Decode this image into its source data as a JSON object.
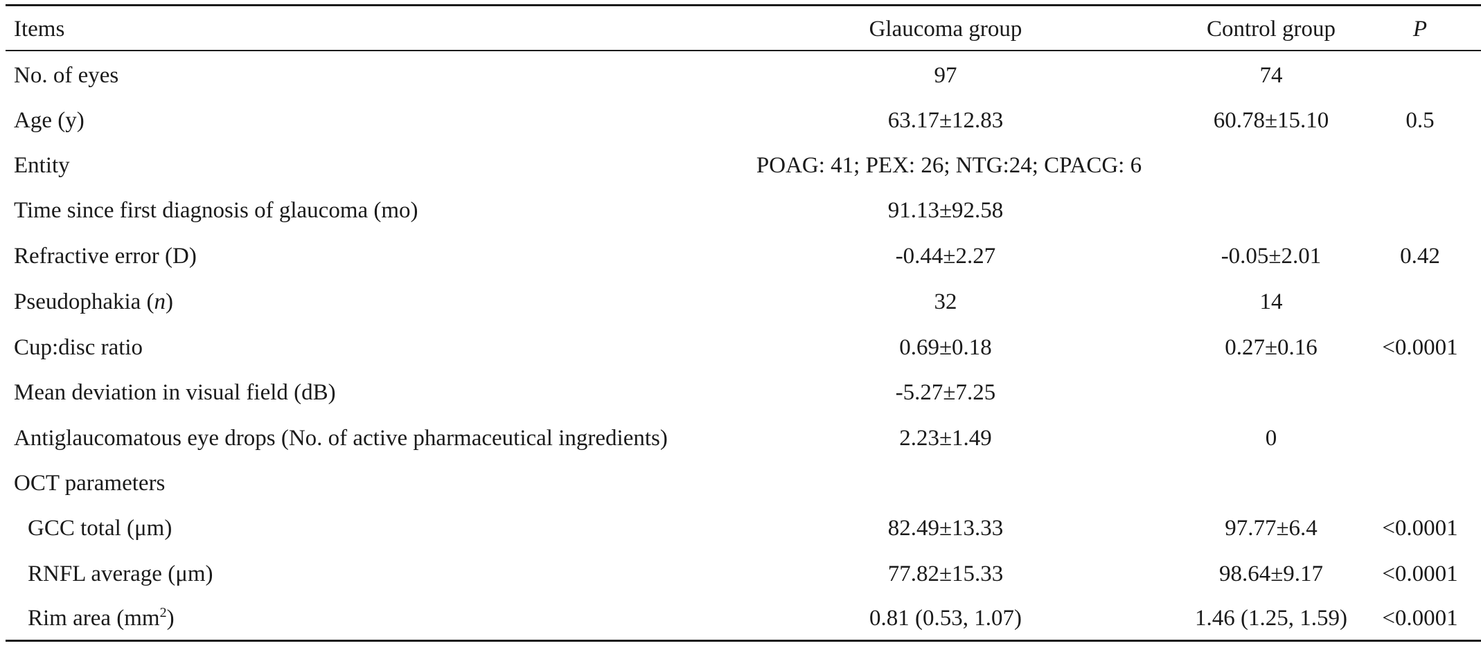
{
  "table": {
    "headers": {
      "items": "Items",
      "glaucoma": "Glaucoma group",
      "control": "Control group",
      "p": "P"
    },
    "rows": [
      {
        "label": "No. of eyes",
        "glaucoma": "97",
        "control": "74",
        "p": ""
      },
      {
        "label": "Age (y)",
        "glaucoma": "63.17±12.83",
        "control": "60.78±15.10",
        "p": "0.5"
      },
      {
        "label": "Entity",
        "span": "POAG: 41; PEX: 26; NTG:24; CPACG: 6"
      },
      {
        "label": "Time since first diagnosis of glaucoma (mo)",
        "glaucoma": "91.13±92.58",
        "control": "",
        "p": ""
      },
      {
        "label": "Refractive error (D)",
        "glaucoma": "-0.44±2.27",
        "control": "-0.05±2.01",
        "p": "0.42"
      },
      {
        "label_pre": "Pseudophakia (",
        "label_italic": "n",
        "label_post": ")",
        "glaucoma": "32",
        "control": "14",
        "p": ""
      },
      {
        "label": "Cup:disc ratio",
        "glaucoma": "0.69±0.18",
        "control": "0.27±0.16",
        "p": "<0.0001"
      },
      {
        "label": "Mean deviation in visual field (dB)",
        "glaucoma": "-5.27±7.25",
        "control": "",
        "p": ""
      },
      {
        "label": "Antiglaucomatous eye drops (No. of active pharmaceutical ingredients)",
        "glaucoma": "2.23±1.49",
        "control": "0",
        "p": ""
      },
      {
        "label": "OCT parameters"
      },
      {
        "label": "GCC total (μm)",
        "glaucoma": "82.49±13.33",
        "control": "97.77±6.4",
        "p": "<0.0001"
      },
      {
        "label": "RNFL average (μm)",
        "glaucoma": "77.82±15.33",
        "control": "98.64±9.17",
        "p": "<0.0001"
      },
      {
        "label_pre": "Rim area (mm",
        "label_sup": "2",
        "label_post": ")",
        "glaucoma": "0.81 (0.53, 1.07)",
        "control": "1.46 (1.25, 1.59)",
        "p": "<0.0001"
      }
    ]
  }
}
